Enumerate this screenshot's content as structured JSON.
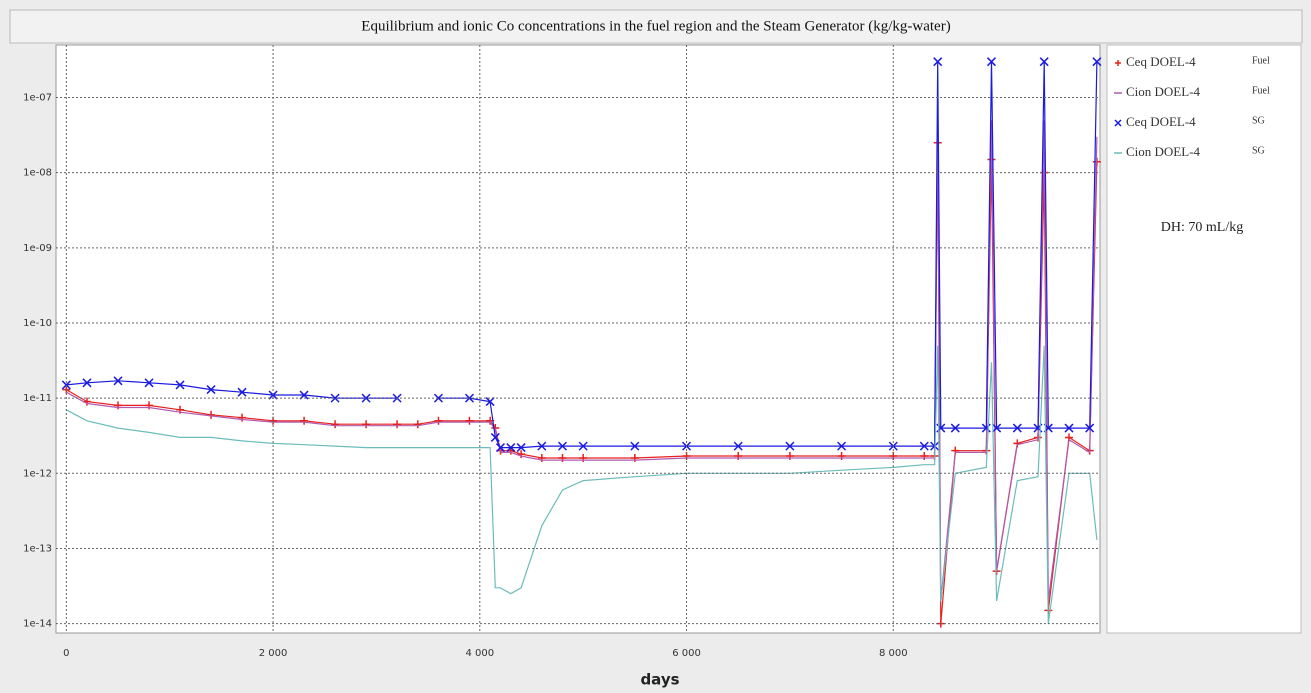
{
  "chart_data": {
    "type": "line",
    "title": "Equilibrium  and ionic Co concentrations in the fuel region and the Steam Generator (kg/kg-water)",
    "x_label": "days",
    "annotation": "DH: 70 mL/kg",
    "yscale": "log",
    "grid": true,
    "legend": "right",
    "xlim": [
      -100,
      10000
    ],
    "ylim": [
      7.5e-15,
      5e-07
    ],
    "xticks": [
      0,
      {
        "value": 2000,
        "label": "2 000"
      },
      {
        "value": 4000,
        "label": "4 000"
      },
      {
        "value": 6000,
        "label": "6 000"
      },
      {
        "value": 8000,
        "label": "8 000"
      }
    ],
    "yticks": [
      {
        "value": 1e-14,
        "label": "1e-14"
      },
      {
        "value": 1e-13,
        "label": "1e-13"
      },
      {
        "value": 1e-12,
        "label": "1e-12"
      },
      {
        "value": 1e-11,
        "label": "1e-11"
      },
      {
        "value": 1e-10,
        "label": "1e-10"
      },
      {
        "value": 1e-09,
        "label": "1e-09"
      },
      {
        "value": 1e-08,
        "label": "1e-08"
      },
      {
        "value": 1e-07,
        "label": "1e-07"
      }
    ],
    "x": [
      0,
      200,
      500,
      800,
      1100,
      1400,
      1700,
      2000,
      2300,
      2600,
      2900,
      3200,
      3400,
      3600,
      3900,
      4100,
      4150,
      4200,
      4300,
      4400,
      4600,
      4800,
      5000,
      5500,
      6000,
      6500,
      7000,
      7500,
      8000,
      8300,
      8400,
      8430,
      8460,
      8600,
      8900,
      8950,
      9000,
      9200,
      9400,
      9460,
      9500,
      9700,
      9900,
      9970
    ],
    "series": [
      {
        "name": "Ceq DOEL-4",
        "tag": "Fuel",
        "color": "#e8201c",
        "marker": "+",
        "values": [
          1.3e-11,
          9e-12,
          8e-12,
          8e-12,
          7e-12,
          6e-12,
          5.5e-12,
          5e-12,
          5e-12,
          4.5e-12,
          4.5e-12,
          4.5e-12,
          4.5e-12,
          5e-12,
          5e-12,
          5e-12,
          4e-12,
          2e-12,
          2e-12,
          1.8e-12,
          1.6e-12,
          1.6e-12,
          1.6e-12,
          1.6e-12,
          1.7e-12,
          1.7e-12,
          1.7e-12,
          1.7e-12,
          1.7e-12,
          1.7e-12,
          1.7e-12,
          2.5e-08,
          1e-14,
          2e-12,
          2e-12,
          1.5e-08,
          5e-14,
          2.5e-12,
          3e-12,
          1e-08,
          1.5e-14,
          3e-12,
          2e-12,
          1.4e-08
        ]
      },
      {
        "name": "Cion DOEL-4",
        "tag": "Fuel",
        "color": "#b05ab0",
        "marker": "none",
        "values": [
          1.2e-11,
          8.5e-12,
          7.5e-12,
          7.5e-12,
          6.5e-12,
          5.8e-12,
          5.2e-12,
          4.8e-12,
          4.8e-12,
          4.3e-12,
          4.3e-12,
          4.3e-12,
          4.3e-12,
          4.8e-12,
          4.8e-12,
          4.8e-12,
          3.8e-12,
          1.9e-12,
          1.9e-12,
          1.7e-12,
          1.5e-12,
          1.5e-12,
          1.5e-12,
          1.5e-12,
          1.6e-12,
          1.6e-12,
          1.6e-12,
          1.6e-12,
          1.6e-12,
          1.6e-12,
          1.6e-12,
          5e-08,
          2e-14,
          1.9e-12,
          1.9e-12,
          5e-08,
          5e-14,
          2.4e-12,
          2.8e-12,
          5e-08,
          2e-14,
          2.8e-12,
          1.9e-12,
          3e-08
        ]
      },
      {
        "name": "Ceq DOEL-4",
        "tag": "SG",
        "color": "#1a1ae0",
        "marker": "x",
        "values": [
          1.5e-11,
          1.6e-11,
          1.7e-11,
          1.6e-11,
          1.5e-11,
          1.3e-11,
          1.2e-11,
          1.1e-11,
          1.1e-11,
          1e-11,
          1e-11,
          1e-11,
          null,
          1e-11,
          1e-11,
          9e-12,
          3e-12,
          2.2e-12,
          2.2e-12,
          2.2e-12,
          2.3e-12,
          2.3e-12,
          2.3e-12,
          2.3e-12,
          2.3e-12,
          2.3e-12,
          2.3e-12,
          2.3e-12,
          2.3e-12,
          2.3e-12,
          2.3e-12,
          3e-07,
          4e-12,
          4e-12,
          4e-12,
          3e-07,
          4e-12,
          4e-12,
          4e-12,
          3e-07,
          4e-12,
          4e-12,
          4e-12,
          3e-07
        ]
      },
      {
        "name": "Cion DOEL-4",
        "tag": "SG",
        "color": "#6cbcbc",
        "marker": "none",
        "values": [
          7e-12,
          5e-12,
          4e-12,
          3.5e-12,
          3e-12,
          3e-12,
          2.7e-12,
          2.5e-12,
          2.4e-12,
          2.3e-12,
          2.2e-12,
          2.2e-12,
          2.2e-12,
          2.2e-12,
          2.2e-12,
          2.2e-12,
          3e-14,
          3e-14,
          2.5e-14,
          3e-14,
          2e-13,
          6e-13,
          8e-13,
          9e-13,
          1e-12,
          1e-12,
          1e-12,
          1.1e-12,
          1.2e-12,
          1.3e-12,
          1.3e-12,
          5e-11,
          2e-14,
          1e-12,
          1.2e-12,
          3e-11,
          2e-14,
          8e-13,
          9e-13,
          5e-11,
          1e-14,
          1e-12,
          1e-12,
          1.3e-13
        ]
      }
    ]
  }
}
